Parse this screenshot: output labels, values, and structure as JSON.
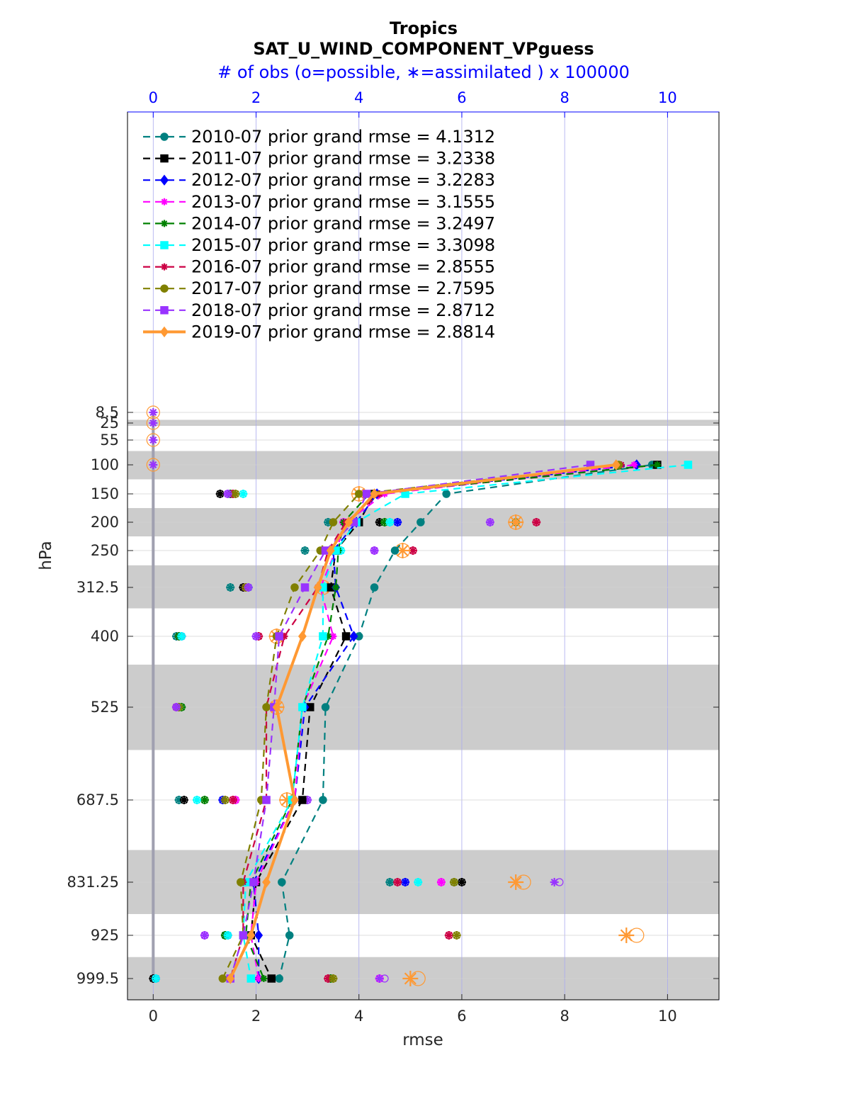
{
  "chart_data": {
    "type": "line",
    "title": "Tropics",
    "subtitle": "SAT_U_WIND_COMPONENT_VPguess",
    "top_axis_label": "# of obs (o=possible, ∗=assimilated ) x 100000",
    "xlabel": "rmse",
    "ylabel": "hPa",
    "xlim": [
      -0.5,
      11
    ],
    "xticks": [
      "0",
      "2",
      "4",
      "6",
      "8",
      "10"
    ],
    "top_xlim": [
      -0.5,
      11
    ],
    "top_xticks": [
      "0",
      "2",
      "4",
      "6",
      "8",
      "10"
    ],
    "y_levels": [
      "8.5",
      "25",
      "55",
      "100",
      "150",
      "200",
      "250",
      "312.5",
      "400",
      "525",
      "687.5",
      "831.25",
      "925",
      "999.5"
    ],
    "shaded_bands": [
      [
        20,
        30
      ],
      [
        75,
        125
      ],
      [
        175,
        225
      ],
      [
        275,
        350
      ],
      [
        450,
        600
      ],
      [
        775,
        887.5
      ],
      [
        962.5,
        1037
      ]
    ],
    "grid": true,
    "legend_position": "top-left",
    "series": [
      {
        "name": "2010-07 prior grand rmse = 4.1312",
        "color": "#008080",
        "marker": "circle",
        "dash": true,
        "levels": [
          100,
          150,
          200,
          250,
          312.5,
          400,
          525,
          687.5,
          831.25,
          925,
          999.5
        ],
        "values": [
          9.7,
          5.7,
          5.2,
          4.7,
          4.3,
          4.0,
          3.35,
          3.3,
          2.5,
          2.65,
          2.45
        ],
        "nposs": [
          null,
          1.45,
          3.4,
          2.95,
          1.5,
          0.45,
          0.45,
          0.5,
          4.6,
          1.45,
          0.05
        ],
        "nused": [
          null,
          1.45,
          3.4,
          2.95,
          1.5,
          0.45,
          0.45,
          0.5,
          4.6,
          1.45,
          0.05
        ]
      },
      {
        "name": "2011-07 prior grand rmse = 3.2338",
        "color": "#000000",
        "marker": "square",
        "dash": true,
        "levels": [
          100,
          150,
          200,
          250,
          312.5,
          400,
          525,
          687.5,
          831.25,
          925,
          999.5
        ],
        "values": [
          9.8,
          4.3,
          4.0,
          3.55,
          3.45,
          3.75,
          3.05,
          2.9,
          2.0,
          1.9,
          2.3
        ],
        "nposs": [
          null,
          1.3,
          4.4,
          3.6,
          1.75,
          0.55,
          0.5,
          0.6,
          6.0,
          1.4,
          0.0
        ],
        "nused": [
          null,
          1.3,
          4.4,
          3.6,
          1.75,
          0.55,
          0.5,
          0.6,
          6.0,
          1.4,
          0.0
        ]
      },
      {
        "name": "2012-07 prior grand rmse = 3.2283",
        "color": "#0000ff",
        "marker": "diamond",
        "dash": true,
        "levels": [
          100,
          150,
          200,
          250,
          312.5,
          400,
          525,
          687.5,
          831.25,
          925,
          999.5
        ],
        "values": [
          9.4,
          4.35,
          3.95,
          3.5,
          3.55,
          3.9,
          2.95,
          2.75,
          1.95,
          2.05,
          2.05
        ],
        "nposs": [
          null,
          1.5,
          4.75,
          3.5,
          1.85,
          0.55,
          0.5,
          1.35,
          4.9,
          1.45,
          0.05
        ],
        "nused": [
          null,
          1.5,
          4.75,
          3.5,
          1.85,
          0.55,
          0.5,
          1.35,
          4.9,
          1.45,
          0.05
        ]
      },
      {
        "name": "2013-07 prior grand rmse = 3.1555",
        "color": "#ff00ff",
        "marker": "star",
        "dash": true,
        "levels": [
          100,
          150,
          200,
          250,
          312.5,
          400,
          525,
          687.5,
          831.25,
          925,
          999.5
        ],
        "values": [
          9.35,
          4.5,
          3.75,
          3.55,
          3.25,
          3.5,
          2.9,
          2.75,
          2.0,
          1.9,
          2.05
        ],
        "nposs": [
          null,
          1.45,
          3.7,
          4.3,
          1.8,
          0.5,
          0.45,
          1.6,
          5.6,
          1.0,
          4.4
        ],
        "nused": [
          null,
          1.45,
          3.7,
          4.3,
          1.8,
          0.5,
          0.45,
          1.6,
          5.6,
          1.0,
          4.4
        ]
      },
      {
        "name": "2014-07 prior grand rmse = 3.2497",
        "color": "#008000",
        "marker": "hexagram",
        "dash": true,
        "levels": [
          100,
          150,
          200,
          250,
          312.5,
          400,
          525,
          687.5,
          831.25,
          925,
          999.5
        ],
        "values": [
          9.8,
          4.2,
          3.7,
          3.6,
          3.55,
          3.4,
          2.9,
          2.7,
          1.9,
          1.8,
          2.15
        ],
        "nposs": [
          null,
          1.5,
          4.5,
          3.55,
          1.85,
          0.5,
          0.55,
          1.0,
          5.85,
          1.4,
          3.45
        ],
        "nused": [
          null,
          1.5,
          4.5,
          3.55,
          1.85,
          0.5,
          0.55,
          1.0,
          5.85,
          1.4,
          3.45
        ]
      },
      {
        "name": "2015-07 prior grand rmse = 3.3098",
        "color": "#00ffff",
        "marker": "square",
        "dash": true,
        "levels": [
          100,
          150,
          200,
          250,
          312.5,
          400,
          525,
          687.5,
          831.25,
          925,
          999.5
        ],
        "values": [
          10.4,
          4.9,
          3.95,
          3.55,
          3.3,
          3.3,
          2.9,
          2.7,
          1.8,
          1.75,
          1.9
        ],
        "nposs": [
          null,
          1.75,
          4.6,
          3.65,
          1.85,
          0.55,
          0.5,
          0.85,
          5.15,
          1.45,
          0.05
        ],
        "nused": [
          null,
          1.75,
          4.6,
          3.65,
          1.85,
          0.55,
          0.5,
          0.85,
          5.15,
          1.45,
          0.05
        ]
      },
      {
        "name": "2016-07 prior grand rmse = 2.8555",
        "color": "#cc0044",
        "marker": "star",
        "dash": true,
        "levels": [
          100,
          150,
          200,
          250,
          312.5,
          400,
          525,
          687.5,
          831.25,
          925,
          999.5
        ],
        "values": [
          9.1,
          4.4,
          3.75,
          3.4,
          3.2,
          2.55,
          2.2,
          2.2,
          1.75,
          1.75,
          1.5
        ],
        "nposs": [
          null,
          1.55,
          7.45,
          5.05,
          1.8,
          2.05,
          0.45,
          1.55,
          4.75,
          5.75,
          3.4
        ],
        "nused": [
          null,
          1.55,
          7.45,
          5.05,
          1.8,
          2.05,
          0.45,
          1.55,
          4.75,
          5.75,
          3.4
        ]
      },
      {
        "name": "2017-07 prior grand rmse = 2.7595",
        "color": "#808000",
        "marker": "circle",
        "dash": true,
        "levels": [
          100,
          150,
          200,
          250,
          312.5,
          400,
          525,
          687.5,
          831.25,
          925,
          999.5
        ],
        "values": [
          9.05,
          4.0,
          3.5,
          3.25,
          2.75,
          2.4,
          2.2,
          2.1,
          1.7,
          1.75,
          1.35
        ],
        "nposs": [
          null,
          1.6,
          7.05,
          3.5,
          1.8,
          2.4,
          0.5,
          1.4,
          5.85,
          5.9,
          3.5
        ],
        "nused": [
          null,
          1.6,
          7.05,
          3.5,
          1.8,
          2.4,
          0.5,
          1.4,
          5.85,
          5.9,
          3.5
        ]
      },
      {
        "name": "2018-07 prior grand rmse = 2.8712",
        "color": "#9933ff",
        "marker": "square",
        "dash": true,
        "levels": [
          100,
          150,
          200,
          250,
          312.5,
          400,
          525,
          687.5,
          831.25,
          925,
          999.5
        ],
        "values": [
          8.5,
          4.15,
          3.9,
          3.35,
          2.95,
          2.45,
          2.35,
          2.2,
          1.95,
          1.75,
          1.5
        ],
        "nposs": [
          null,
          1.45,
          6.55,
          4.3,
          1.85,
          2.0,
          0.45,
          3.0,
          7.9,
          1.0,
          4.5
        ],
        "nused": [
          null,
          1.45,
          6.55,
          4.3,
          1.85,
          2.0,
          0.45,
          3.0,
          7.8,
          1.0,
          4.4
        ]
      },
      {
        "name": "2019-07 prior grand rmse = 2.8814",
        "color": "#ff9933",
        "marker": "diamond",
        "dash": false,
        "levels": [
          100,
          150,
          200,
          250,
          312.5,
          400,
          525,
          687.5,
          831.25,
          925,
          999.5
        ],
        "values": [
          9.0,
          4.3,
          3.8,
          3.45,
          3.2,
          2.9,
          2.4,
          2.75,
          2.2,
          1.9,
          1.5
        ],
        "nposs": [
          null,
          4.0,
          7.05,
          4.85,
          3.3,
          2.4,
          2.4,
          2.6,
          7.2,
          9.4,
          5.15
        ],
        "nused": [
          null,
          4.0,
          7.05,
          4.85,
          3.3,
          2.4,
          2.4,
          2.6,
          7.05,
          9.2,
          5.0
        ]
      }
    ],
    "upper_obs_levels": [
      8.5,
      25,
      55,
      100
    ],
    "upper_obs_value": 0
  }
}
